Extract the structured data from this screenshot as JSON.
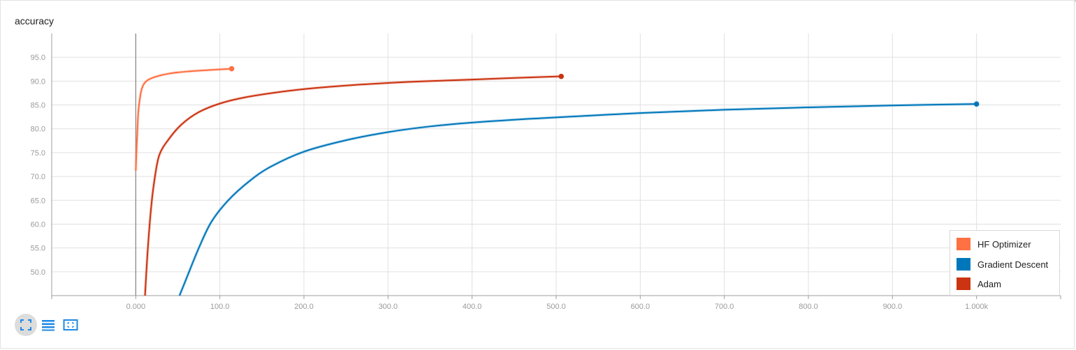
{
  "card": {
    "title": "accuracy"
  },
  "colors": {
    "hf": "#ff7043",
    "gd": "#0077bb",
    "adam": "#cc3311",
    "grid": "#e0e0e0",
    "axis": "#9e9e9e",
    "icon": "#1e88e5"
  },
  "toolbar": {
    "buttons": [
      {
        "name": "fit-domain-button",
        "icon": "expand-icon",
        "active": true
      },
      {
        "name": "toggle-log-scale-button",
        "icon": "list-icon",
        "active": false
      },
      {
        "name": "select-region-button",
        "icon": "selection-icon",
        "active": false
      }
    ]
  },
  "chart_data": {
    "type": "line",
    "title": "accuracy",
    "xlabel": "",
    "ylabel": "",
    "xlim": [
      -100,
      1100
    ],
    "ylim": [
      45,
      100
    ],
    "x_ticks": [
      0,
      100,
      200,
      300,
      400,
      500,
      600,
      700,
      800,
      900,
      1000
    ],
    "x_tick_labels": [
      "0.000",
      "100.0",
      "200.0",
      "300.0",
      "400.0",
      "500.0",
      "600.0",
      "700.0",
      "800.0",
      "900.0",
      "1.000k"
    ],
    "y_ticks": [
      50,
      55,
      60,
      65,
      70,
      75,
      80,
      85,
      90,
      95
    ],
    "y_tick_labels": [
      "50.0",
      "55.0",
      "60.0",
      "65.0",
      "70.0",
      "75.0",
      "80.0",
      "85.0",
      "90.0",
      "95.0"
    ],
    "grid": true,
    "legend_position": "bottom-right",
    "series": [
      {
        "name": "HF Optimizer",
        "color": "#ff7043",
        "points": [
          [
            0,
            71.2
          ],
          [
            1,
            76
          ],
          [
            2,
            80
          ],
          [
            3,
            83.5
          ],
          [
            5,
            86.5
          ],
          [
            7,
            88.3
          ],
          [
            10,
            89.5
          ],
          [
            15,
            90.3
          ],
          [
            25,
            91
          ],
          [
            40,
            91.6
          ],
          [
            60,
            92
          ],
          [
            85,
            92.3
          ],
          [
            114,
            92.6
          ]
        ]
      },
      {
        "name": "Gradient Descent",
        "color": "#0077bb",
        "points": [
          [
            52,
            45
          ],
          [
            60,
            48.5
          ],
          [
            75,
            55
          ],
          [
            90,
            60.5
          ],
          [
            110,
            65
          ],
          [
            135,
            69
          ],
          [
            160,
            72
          ],
          [
            200,
            75.2
          ],
          [
            250,
            77.6
          ],
          [
            300,
            79.3
          ],
          [
            350,
            80.5
          ],
          [
            400,
            81.3
          ],
          [
            450,
            81.9
          ],
          [
            500,
            82.4
          ],
          [
            600,
            83.3
          ],
          [
            700,
            84
          ],
          [
            800,
            84.5
          ],
          [
            900,
            84.9
          ],
          [
            1000,
            85.2
          ]
        ]
      },
      {
        "name": "Adam",
        "color": "#cc3311",
        "points": [
          [
            11,
            45
          ],
          [
            14,
            54
          ],
          [
            18,
            63
          ],
          [
            22,
            69
          ],
          [
            28,
            74.5
          ],
          [
            40,
            78
          ],
          [
            55,
            81
          ],
          [
            75,
            83.5
          ],
          [
            100,
            85.3
          ],
          [
            130,
            86.6
          ],
          [
            170,
            87.7
          ],
          [
            210,
            88.5
          ],
          [
            260,
            89.2
          ],
          [
            320,
            89.8
          ],
          [
            380,
            90.2
          ],
          [
            440,
            90.6
          ],
          [
            506,
            91.0
          ]
        ]
      }
    ]
  }
}
